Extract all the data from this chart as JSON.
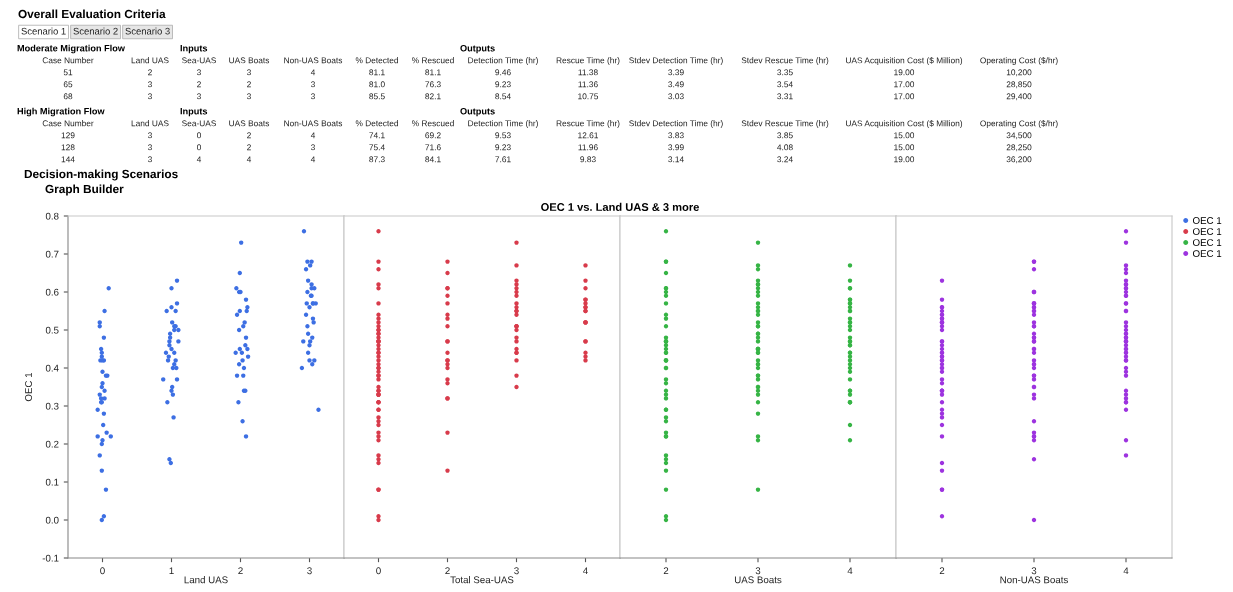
{
  "chart_data": [
    {
      "type": "other",
      "title": "Overall Evaluation Criteria",
      "annotations": [
        "Scenario 1",
        "Scenario 2",
        "Scenario 3"
      ]
    },
    {
      "type": "other",
      "subtitle": "Moderate Migration Flow",
      "annotations": [
        "Inputs",
        "Outputs"
      ],
      "categories": [
        "Case Number",
        "Land UAS",
        "Sea-UAS",
        "UAS Boats",
        "Non-UAS Boats",
        "% Detected",
        "% Rescued",
        "Detection Time (hr)",
        "Rescue Time (hr)",
        "Stdev Detection Time (hr)",
        "Stdev Rescue Time (hr)",
        "UAS Acquisition Cost ($ Million)",
        "Operating Cost ($/hr)"
      ],
      "cell_labels": [
        [
          "51",
          "2",
          "3",
          "3",
          "4",
          "81.1",
          "81.1",
          "9.46",
          "11.38",
          "3.39",
          "3.35",
          "19.00",
          "10,200"
        ],
        [
          "65",
          "3",
          "2",
          "2",
          "3",
          "81.0",
          "76.3",
          "9.23",
          "11.36",
          "3.49",
          "3.54",
          "17.00",
          "28,850"
        ],
        [
          "68",
          "3",
          "3",
          "3",
          "3",
          "85.5",
          "82.1",
          "8.54",
          "10.75",
          "3.03",
          "3.31",
          "17.00",
          "29,400"
        ]
      ]
    },
    {
      "type": "other",
      "subtitle": "High Migration Flow",
      "annotations": [
        "Inputs",
        "Outputs"
      ],
      "categories": [
        "Case Number",
        "Land UAS",
        "Sea-UAS",
        "UAS Boats",
        "Non-UAS Boats",
        "% Detected",
        "% Rescued",
        "Detection Time (hr)",
        "Rescue Time (hr)",
        "Stdev Detection Time (hr)",
        "Stdev Rescue Time (hr)",
        "UAS Acquisition Cost ($ Million)",
        "Operating Cost ($/hr)"
      ],
      "cell_labels": [
        [
          "129",
          "3",
          "0",
          "2",
          "4",
          "74.1",
          "69.2",
          "9.53",
          "12.61",
          "3.83",
          "3.85",
          "15.00",
          "34,500"
        ],
        [
          "128",
          "3",
          "0",
          "2",
          "3",
          "75.4",
          "71.6",
          "9.23",
          "11.96",
          "3.99",
          "4.08",
          "15.00",
          "28,250"
        ],
        [
          "144",
          "3",
          "4",
          "4",
          "4",
          "87.3",
          "84.1",
          "7.61",
          "9.83",
          "3.14",
          "3.24",
          "19.00",
          "36,200"
        ]
      ]
    },
    {
      "type": "other",
      "title": "Decision-making Scenarios",
      "subtitle": "Graph Builder",
      "annotations": [
        "OEC 1 vs. Land UAS & 3 more"
      ]
    },
    {
      "type": "scatter",
      "xlabel": "Land UAS",
      "ylabel": "OEC 1",
      "marker": "circle",
      "legend": "right",
      "xlim": [
        -0.5,
        3.5
      ],
      "xticks": [
        0,
        1,
        2,
        3
      ],
      "ylim": [
        -0.1,
        0.8
      ],
      "yticks": [
        -0.1,
        {
          "value": 0,
          "label": "0.0"
        },
        0.1,
        0.2,
        0.3,
        0.4,
        0.5,
        0.6,
        0.7,
        0.8
      ],
      "series": [
        {
          "name": "OEC 1",
          "color": "#3d6fe3",
          "x": [
            0.09,
            0.03,
            -0.04,
            -0.04,
            0.02,
            -0.02,
            -0.01,
            -0.01,
            -0.03,
            0,
            0.02,
            0,
            0.07,
            0.05,
            0,
            -0.01,
            -0.04,
            0.03,
            -0.02,
            0.03,
            -0.02,
            -0.01,
            -0.07,
            0.02,
            0.01,
            0.06,
            0.12,
            -0.07,
            0,
            -0.01,
            -0.04,
            -0.01,
            0.05,
            0.02,
            -0.01,
            1.08,
            1,
            0.93,
            1,
            1.08,
            1.06,
            1.01,
            1.04,
            1.06,
            1.1,
            1.04,
            0.98,
            0.98,
            0.97,
            0.97,
            1.1,
            1,
            1.04,
            0.92,
            0.96,
            0.95,
            1.06,
            1.04,
            1.07,
            1.02,
            0.88,
            1.08,
            1.01,
            1,
            1.02,
            0.94,
            1.03,
            0.97,
            0.99,
            2.01,
            1.99,
            1.94,
            1.98,
            2,
            2.08,
            2.1,
            1.99,
            2.09,
            1.95,
            2.06,
            2.04,
            1.98,
            2.08,
            1.93,
            2.02,
            2.07,
            1.99,
            2.11,
            2.1,
            2.03,
            1.98,
            2.05,
            1.95,
            2.04,
            2.05,
            2.07,
            1.97,
            2.03,
            2.08,
            2.92,
            2.97,
            3.03,
            2.95,
            3.01,
            2.98,
            3.03,
            3.03,
            2.97,
            3.07,
            3.02,
            3.03,
            2.96,
            3.05,
            3.09,
            3.05,
            3,
            2.95,
            3.05,
            3.06,
            2.97,
            2.98,
            3.04,
            3.01,
            2.91,
            3,
            2.98,
            3.07,
            3,
            3.04,
            2.89,
            3.13
          ],
          "values": [
            0.61,
            0.55,
            0.52,
            0.51,
            0.48,
            0.45,
            0.44,
            0.43,
            0.42,
            0.42,
            0.42,
            0.39,
            0.38,
            0.38,
            0.36,
            0.35,
            0.33,
            0.34,
            0.32,
            0.32,
            0.31,
            0.31,
            0.29,
            0.28,
            0.25,
            0.23,
            0.22,
            0.22,
            0.21,
            0.2,
            0.17,
            0.13,
            0.08,
            0.01,
            0,
            0.63,
            0.61,
            0.55,
            0.56,
            0.57,
            0.55,
            0.52,
            0.51,
            0.51,
            0.5,
            0.5,
            0.49,
            0.48,
            0.47,
            0.46,
            0.47,
            0.45,
            0.44,
            0.44,
            0.43,
            0.42,
            0.42,
            0.41,
            0.4,
            0.4,
            0.37,
            0.37,
            0.35,
            0.34,
            0.33,
            0.31,
            0.27,
            0.16,
            0.15,
            0.73,
            0.65,
            0.61,
            0.6,
            0.6,
            0.58,
            0.56,
            0.55,
            0.55,
            0.54,
            0.52,
            0.51,
            0.5,
            0.48,
            0.44,
            0.44,
            0.46,
            0.45,
            0.43,
            0.45,
            0.42,
            0.41,
            0.4,
            0.38,
            0.38,
            0.34,
            0.34,
            0.31,
            0.26,
            0.22,
            0.76,
            0.68,
            0.68,
            0.66,
            0.67,
            0.63,
            0.62,
            0.61,
            0.6,
            0.61,
            0.59,
            0.59,
            0.57,
            0.57,
            0.57,
            0.57,
            0.56,
            0.54,
            0.53,
            0.52,
            0.51,
            0.49,
            0.48,
            0.47,
            0.47,
            0.46,
            0.44,
            0.42,
            0.42,
            0.41,
            0.4,
            0.29
          ]
        }
      ]
    },
    {
      "type": "scatter",
      "xlabel": "Total Sea-UAS",
      "marker": "circle",
      "legend": "right",
      "tick_labels": "x",
      "categories": [
        "0",
        "2",
        "3",
        "4"
      ],
      "ylim": [
        -0.1,
        0.8
      ],
      "series": [
        {
          "name": "OEC 1",
          "color": "#d83b4b",
          "x": [
            "0",
            "0",
            "0",
            "0",
            "0",
            "0",
            "0",
            "0",
            "0",
            "0",
            "0",
            "0",
            "0",
            "0",
            "0",
            "0",
            "0",
            "0",
            "0",
            "0",
            "0",
            "0",
            "0",
            "0",
            "0",
            "0",
            "0",
            "0",
            "0",
            "0",
            "0",
            "0",
            "0",
            "0",
            "0",
            "0",
            "0",
            "0",
            "0",
            "0",
            "0",
            "0",
            "0",
            "0",
            "0",
            "0",
            "0",
            "0",
            "0",
            "0",
            "0",
            "0",
            "0",
            "0",
            "0",
            "2",
            "2",
            "2",
            "2",
            "2",
            "2",
            "2",
            "2",
            "2",
            "2",
            "2",
            "2",
            "2",
            "2",
            "2",
            "2",
            "2",
            "2",
            "2",
            "2",
            "2",
            "2",
            "3",
            "3",
            "3",
            "3",
            "3",
            "3",
            "3",
            "3",
            "3",
            "3",
            "3",
            "3",
            "3",
            "3",
            "3",
            "3",
            "3",
            "3",
            "3",
            "3",
            "3",
            "3",
            "3",
            "3",
            "4",
            "4",
            "4",
            "4",
            "4",
            "4",
            "4",
            "4",
            "4",
            "4",
            "4",
            "4",
            "4",
            "4",
            "4",
            "4",
            "4",
            "4"
          ],
          "values": [
            0.76,
            0.68,
            0.66,
            0.62,
            0.61,
            0.57,
            0.54,
            0.53,
            0.52,
            0.51,
            0.5,
            0.5,
            0.49,
            0.49,
            0.48,
            0.47,
            0.47,
            0.46,
            0.47,
            0.45,
            0.44,
            0.44,
            0.43,
            0.42,
            0.41,
            0.4,
            0.4,
            0.39,
            0.38,
            0.38,
            0.37,
            0.35,
            0.34,
            0.34,
            0.33,
            0.33,
            0.33,
            0.31,
            0.31,
            0.31,
            0.29,
            0.29,
            0.27,
            0.26,
            0.25,
            0.23,
            0.22,
            0.21,
            0.17,
            0.16,
            0.15,
            0.08,
            0.08,
            0.01,
            0,
            0.68,
            0.65,
            0.61,
            0.61,
            0.59,
            0.57,
            0.54,
            0.53,
            0.51,
            0.47,
            0.47,
            0.44,
            0.42,
            0.42,
            0.41,
            0.4,
            0.37,
            0.36,
            0.32,
            0.32,
            0.23,
            0.13,
            0.73,
            0.67,
            0.63,
            0.62,
            0.61,
            0.6,
            0.59,
            0.57,
            0.56,
            0.55,
            0.55,
            0.54,
            0.51,
            0.51,
            0.51,
            0.5,
            0.48,
            0.47,
            0.45,
            0.44,
            0.44,
            0.42,
            0.38,
            0.35,
            0.67,
            0.63,
            0.61,
            0.58,
            0.58,
            0.57,
            0.56,
            0.56,
            0.55,
            0.55,
            0.52,
            0.52,
            0.52,
            0.47,
            0.47,
            0.44,
            0.43,
            0.42
          ]
        }
      ]
    },
    {
      "type": "scatter",
      "xlabel": "UAS Boats",
      "marker": "circle",
      "legend": "right",
      "tick_labels": "x",
      "categories": [
        "2",
        "3",
        "4"
      ],
      "ylim": [
        -0.1,
        0.8
      ],
      "series": [
        {
          "name": "OEC 1",
          "color": "#36b445",
          "x": [
            "2",
            "2",
            "2",
            "2",
            "2",
            "2",
            "2",
            "2",
            "2",
            "2",
            "2",
            "2",
            "2",
            "2",
            "2",
            "2",
            "2",
            "2",
            "2",
            "2",
            "2",
            "2",
            "2",
            "2",
            "2",
            "2",
            "2",
            "2",
            "2",
            "2",
            "2",
            "2",
            "2",
            "2",
            "2",
            "2",
            "2",
            "2",
            "2",
            "2",
            "2",
            "2",
            "2",
            "2",
            "3",
            "3",
            "3",
            "3",
            "3",
            "3",
            "3",
            "3",
            "3",
            "3",
            "3",
            "3",
            "3",
            "3",
            "3",
            "3",
            "3",
            "3",
            "3",
            "3",
            "3",
            "3",
            "3",
            "3",
            "3",
            "3",
            "3",
            "3",
            "3",
            "3",
            "3",
            "3",
            "3",
            "3",
            "3",
            "3",
            "3",
            "3",
            "3",
            "3",
            "3",
            "3",
            "3",
            "4",
            "4",
            "4",
            "4",
            "4",
            "4",
            "4",
            "4",
            "4",
            "4",
            "4",
            "4",
            "4",
            "4",
            "4",
            "4",
            "4",
            "4",
            "4",
            "4",
            "4",
            "4",
            "4",
            "4",
            "4",
            "4",
            "4",
            "4",
            "4",
            "4",
            "4",
            "4",
            "4",
            "4",
            "4",
            "4",
            "4"
          ],
          "values": [
            0.76,
            0.68,
            0.68,
            0.65,
            0.61,
            0.61,
            0.6,
            0.59,
            0.57,
            0.54,
            0.53,
            0.51,
            0.48,
            0.47,
            0.47,
            0.47,
            0.46,
            0.45,
            0.44,
            0.44,
            0.42,
            0.42,
            0.42,
            0.4,
            0.4,
            0.37,
            0.36,
            0.34,
            0.33,
            0.32,
            0.29,
            0.29,
            0.27,
            0.26,
            0.23,
            0.22,
            0.22,
            0.17,
            0.16,
            0.15,
            0.13,
            0.08,
            0.01,
            0,
            0.73,
            0.66,
            0.67,
            0.63,
            0.62,
            0.62,
            0.61,
            0.6,
            0.59,
            0.57,
            0.56,
            0.55,
            0.55,
            0.54,
            0.52,
            0.51,
            0.51,
            0.49,
            0.49,
            0.48,
            0.47,
            0.45,
            0.45,
            0.45,
            0.45,
            0.44,
            0.44,
            0.42,
            0.41,
            0.41,
            0.4,
            0.38,
            0.38,
            0.37,
            0.35,
            0.35,
            0.34,
            0.33,
            0.31,
            0.28,
            0.22,
            0.21,
            0.08,
            0.67,
            0.63,
            0.61,
            0.61,
            0.58,
            0.58,
            0.57,
            0.57,
            0.56,
            0.55,
            0.55,
            0.53,
            0.52,
            0.52,
            0.51,
            0.5,
            0.48,
            0.47,
            0.46,
            0.47,
            0.46,
            0.44,
            0.44,
            0.43,
            0.42,
            0.41,
            0.4,
            0.39,
            0.37,
            0.34,
            0.34,
            0.33,
            0.31,
            0.31,
            0.31,
            0.25,
            0.21
          ]
        }
      ]
    },
    {
      "type": "scatter",
      "xlabel": "Non-UAS Boats",
      "marker": "circle",
      "legend": "right",
      "tick_labels": "x",
      "categories": [
        "2",
        "3",
        "4"
      ],
      "ylim": [
        -0.1,
        0.8
      ],
      "series": [
        {
          "name": "OEC 1",
          "color": "#9d33df",
          "x": [
            "2",
            "2",
            "2",
            "2",
            "2",
            "2",
            "2",
            "2",
            "2",
            "2",
            "2",
            "2",
            "2",
            "2",
            "2",
            "2",
            "2",
            "2",
            "2",
            "2",
            "2",
            "2",
            "2",
            "2",
            "2",
            "2",
            "2",
            "2",
            "2",
            "2",
            "2",
            "2",
            "2",
            "2",
            "2",
            "2",
            "2",
            "2",
            "2",
            "2",
            "2",
            "2",
            "2",
            "2",
            "2",
            "3",
            "3",
            "3",
            "3",
            "3",
            "3",
            "3",
            "3",
            "3",
            "3",
            "3",
            "3",
            "3",
            "3",
            "3",
            "3",
            "3",
            "3",
            "3",
            "3",
            "3",
            "3",
            "3",
            "3",
            "3",
            "3",
            "3",
            "3",
            "3",
            "3",
            "3",
            "3",
            "3",
            "3",
            "3",
            "3",
            "3",
            "3",
            "3",
            "3",
            "3",
            "3",
            "3",
            "4",
            "4",
            "4",
            "4",
            "4",
            "4",
            "4",
            "4",
            "4",
            "4",
            "4",
            "4",
            "4",
            "4",
            "4",
            "4",
            "4",
            "4",
            "4",
            "4",
            "4",
            "4",
            "4",
            "4",
            "4",
            "4",
            "4",
            "4",
            "4",
            "4",
            "4",
            "4",
            "4",
            "4",
            "4",
            "4",
            "4",
            "4",
            "4",
            "4",
            "4",
            "4",
            "4",
            "4",
            "4",
            "4"
          ],
          "values": [
            0.63,
            0.58,
            0.56,
            0.56,
            0.55,
            0.54,
            0.54,
            0.53,
            0.53,
            0.52,
            0.52,
            0.52,
            0.51,
            0.5,
            0.47,
            0.47,
            0.46,
            0.44,
            0.45,
            0.44,
            0.43,
            0.43,
            0.42,
            0.41,
            0.42,
            0.4,
            0.4,
            0.39,
            0.37,
            0.36,
            0.34,
            0.34,
            0.34,
            0.33,
            0.31,
            0.29,
            0.28,
            0.27,
            0.25,
            0.22,
            0.15,
            0.13,
            0.08,
            0.08,
            0.01,
            0.68,
            0.68,
            0.66,
            0.6,
            0.6,
            0.6,
            0.57,
            0.57,
            0.56,
            0.57,
            0.56,
            0.55,
            0.55,
            0.54,
            0.52,
            0.51,
            0.51,
            0.49,
            0.47,
            0.48,
            0.48,
            0.47,
            0.45,
            0.44,
            0.45,
            0.42,
            0.4,
            0.41,
            0.41,
            0.38,
            0.38,
            0.37,
            0.35,
            0.35,
            0.33,
            0.32,
            0.26,
            0.23,
            0.22,
            0.22,
            0.21,
            0.16,
            0,
            0.76,
            0.73,
            0.66,
            0.67,
            0.65,
            0.63,
            0.62,
            0.61,
            0.61,
            0.62,
            0.6,
            0.59,
            0.59,
            0.57,
            0.57,
            0.55,
            0.55,
            0.52,
            0.51,
            0.5,
            0.49,
            0.49,
            0.48,
            0.48,
            0.47,
            0.47,
            0.46,
            0.47,
            0.45,
            0.45,
            0.44,
            0.44,
            0.43,
            0.42,
            0.42,
            0.4,
            0.39,
            0.38,
            0.34,
            0.33,
            0.31,
            0.31,
            0.32,
            0.29,
            0.21,
            0.17
          ]
        }
      ]
    }
  ]
}
